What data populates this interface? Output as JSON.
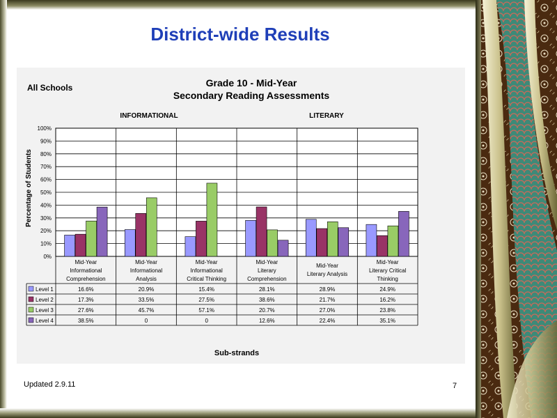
{
  "slide": {
    "title": "District-wide Results",
    "footer_updated": "Updated  2.9.11",
    "page_number": "7"
  },
  "colors": {
    "title": "#1f3fb8",
    "level1": "#9999ff",
    "level2": "#993366",
    "level3": "#99cc66",
    "level4": "#8866bb"
  },
  "chart_data": {
    "type": "bar",
    "corner_label": "All Schools",
    "title": "Grade 10 - Mid-Year",
    "subtitle": "Secondary Reading Assessments",
    "group_labels": [
      "INFORMATIONAL",
      "LITERARY"
    ],
    "ylabel": "Percentage of Students",
    "xlabel": "Sub-strands",
    "ylim": [
      0,
      100
    ],
    "yticks": [
      "0%",
      "10%",
      "20%",
      "30%",
      "40%",
      "50%",
      "60%",
      "70%",
      "80%",
      "90%",
      "100%"
    ],
    "grid": true,
    "categories": [
      [
        "Mid-Year",
        "Informational",
        "Comprehension"
      ],
      [
        "Mid-Year",
        "Informational",
        "Analysis"
      ],
      [
        "Mid-Year",
        "Informational",
        "Critical Thinking"
      ],
      [
        "Mid-Year",
        "Literary",
        "Comprehension"
      ],
      [
        "Mid-Year",
        "Literary Analysis"
      ],
      [
        "Mid-Year",
        "Literary Critical",
        "Thinking"
      ]
    ],
    "series": [
      {
        "name": "Level 1",
        "values": [
          16.6,
          20.9,
          15.4,
          28.1,
          28.9,
          24.9
        ],
        "labels": [
          "16.6%",
          "20.9%",
          "15.4%",
          "28.1%",
          "28.9%",
          "24.9%"
        ]
      },
      {
        "name": "Level 2",
        "values": [
          17.3,
          33.5,
          27.5,
          38.6,
          21.7,
          16.2
        ],
        "labels": [
          "17.3%",
          "33.5%",
          "27.5%",
          "38.6%",
          "21.7%",
          "16.2%"
        ]
      },
      {
        "name": "Level 3",
        "values": [
          27.6,
          45.7,
          57.1,
          20.7,
          27.0,
          23.8
        ],
        "labels": [
          "27.6%",
          "45.7%",
          "57.1%",
          "20.7%",
          "27.0%",
          "23.8%"
        ]
      },
      {
        "name": "Level 4",
        "values": [
          38.5,
          0,
          0,
          12.6,
          22.4,
          35.1
        ],
        "labels": [
          "38.5%",
          "0",
          "0",
          "12.6%",
          "22.4%",
          "35.1%"
        ]
      }
    ]
  }
}
